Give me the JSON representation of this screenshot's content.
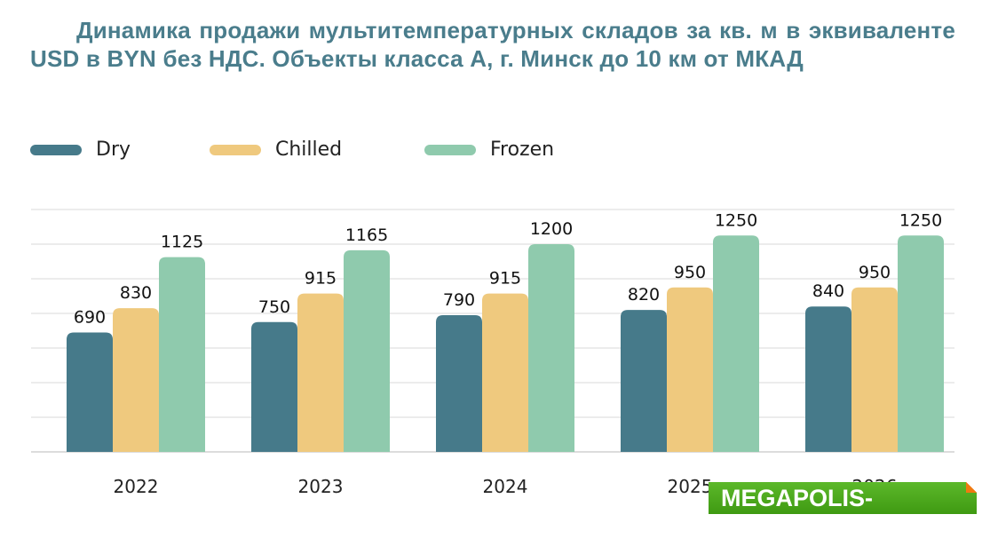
{
  "chart_data": {
    "type": "bar",
    "title": "Динамика продажи мультитемпературных складов за кв. м в эквиваленте USD в BYN без НДС. Объекты класса А, г. Минск до 10 км от МКАД",
    "categories": [
      "2022",
      "2023",
      "2024",
      "2025",
      "2026"
    ],
    "series": [
      {
        "name": "Dry",
        "color": "#467a8a",
        "values": [
          690,
          750,
          790,
          820,
          840
        ]
      },
      {
        "name": "Chilled",
        "color": "#efc97e",
        "values": [
          830,
          915,
          915,
          950,
          950
        ]
      },
      {
        "name": "Frozen",
        "color": "#8fcaad",
        "values": [
          1125,
          1165,
          1200,
          1250,
          1250
        ]
      }
    ],
    "ylim": [
      0,
      1400
    ],
    "grid_step": 200,
    "grid": true,
    "y_axis_labels": false,
    "legend_position": "top-left",
    "data_labels": true
  },
  "watermark": {
    "text": "MEGAPOLIS-REAL.BY",
    "color": "#4aa81c"
  }
}
